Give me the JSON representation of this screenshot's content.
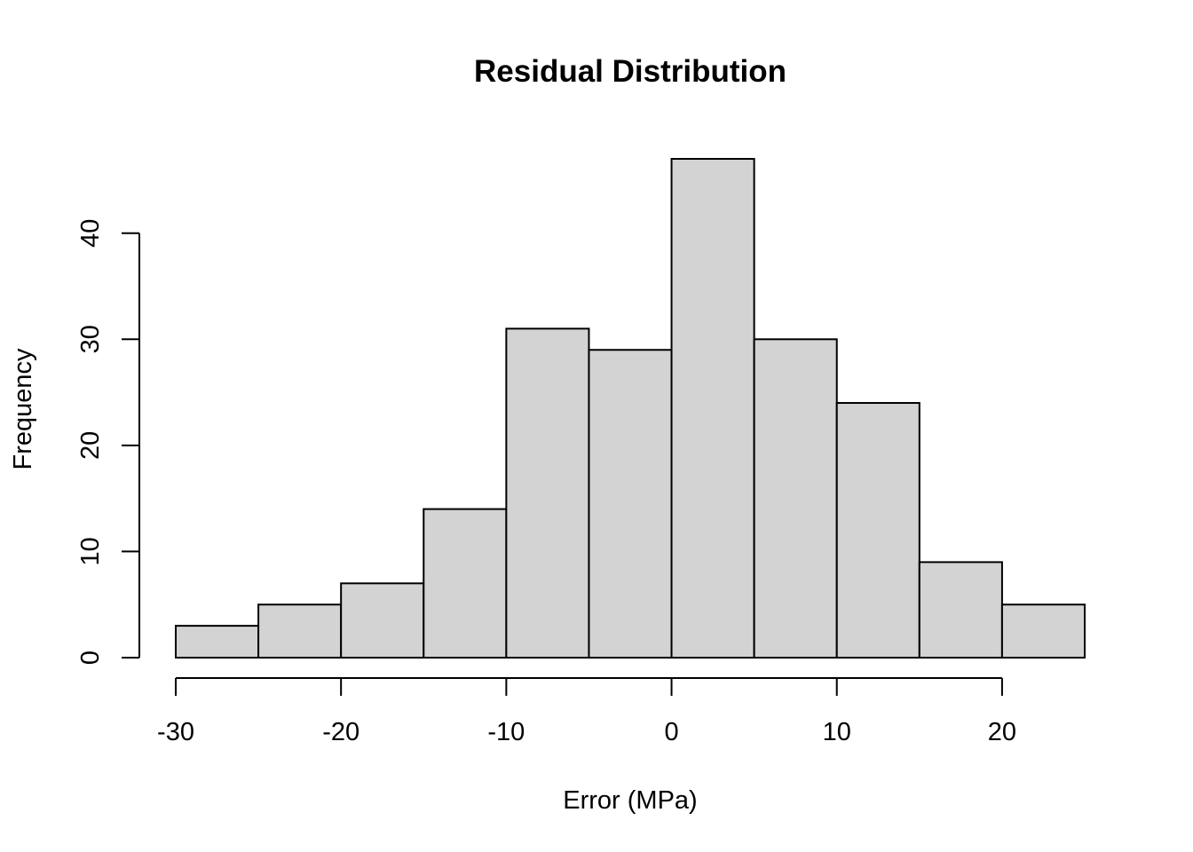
{
  "chart_data": {
    "type": "bar",
    "subtype": "histogram",
    "title": "Residual Distribution",
    "xlabel": "Error (MPa)",
    "ylabel": "Frequency",
    "bin_edges": [
      -30,
      -25,
      -20,
      -15,
      -10,
      -5,
      0,
      5,
      10,
      15,
      20,
      25
    ],
    "values": [
      3,
      5,
      7,
      14,
      31,
      29,
      47,
      30,
      24,
      9,
      5
    ],
    "x_ticks": [
      -30,
      -20,
      -10,
      0,
      10,
      20
    ],
    "y_ticks": [
      0,
      10,
      20,
      30,
      40
    ],
    "xlim": [
      -30,
      25
    ],
    "ylim": [
      0,
      47
    ],
    "grid": false,
    "legend": "none",
    "colors": {
      "bar_fill": "#d3d3d3",
      "bar_stroke": "#000000",
      "text": "#000000",
      "background": "#ffffff"
    }
  }
}
